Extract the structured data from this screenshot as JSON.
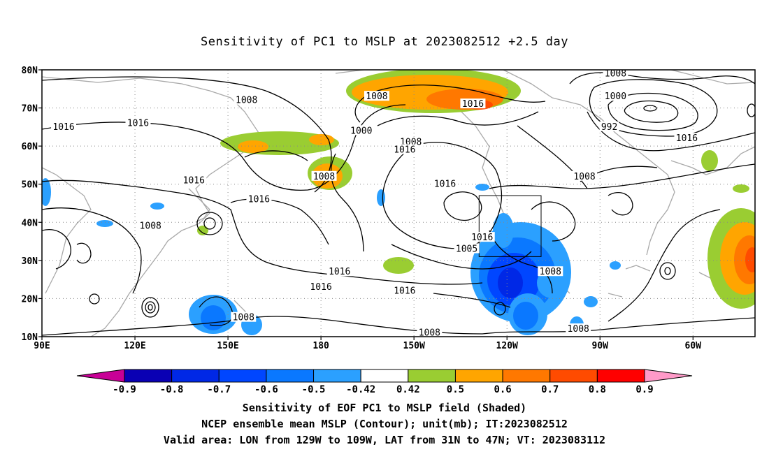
{
  "title": "Sensitivity of PC1 to MSLP at 2023082512 +2.5 day",
  "map": {
    "lat_labels": [
      "80N",
      "70N",
      "60N",
      "50N",
      "40N",
      "30N",
      "20N",
      "10N"
    ],
    "lon_labels": [
      "90E",
      "120E",
      "150E",
      "180",
      "150W",
      "120W",
      "90W",
      "60W"
    ],
    "contour_labels": [
      {
        "text": "1008",
        "lon": 156,
        "lat": 72
      },
      {
        "text": "1016",
        "lon": 97,
        "lat": 65
      },
      {
        "text": "1016",
        "lon": 121,
        "lat": 66
      },
      {
        "text": "1008",
        "lon": 198,
        "lat": 73
      },
      {
        "text": "1000",
        "lon": 193,
        "lat": 64
      },
      {
        "text": "1008",
        "lon": 209,
        "lat": 61
      },
      {
        "text": "1016",
        "lon": 207,
        "lat": 59
      },
      {
        "text": "1016",
        "lon": 229,
        "lat": 71
      },
      {
        "text": "1008",
        "lon": 275,
        "lat": 79
      },
      {
        "text": "1000",
        "lon": 275,
        "lat": 73
      },
      {
        "text": "992",
        "lon": 273,
        "lat": 65
      },
      {
        "text": "1016",
        "lon": 298,
        "lat": 62
      },
      {
        "text": "1008",
        "lon": 181,
        "lat": 52
      },
      {
        "text": "1016",
        "lon": 139,
        "lat": 51
      },
      {
        "text": "1016",
        "lon": 160,
        "lat": 46
      },
      {
        "text": "1008",
        "lon": 125,
        "lat": 39
      },
      {
        "text": "1016",
        "lon": 220,
        "lat": 50
      },
      {
        "text": "1008",
        "lon": 265,
        "lat": 52
      },
      {
        "text": "1016",
        "lon": 232,
        "lat": 36
      },
      {
        "text": "1005",
        "lon": 227,
        "lat": 33
      },
      {
        "text": "1016",
        "lon": 186,
        "lat": 27
      },
      {
        "text": "1016",
        "lon": 180,
        "lat": 23
      },
      {
        "text": "1016",
        "lon": 207,
        "lat": 22
      },
      {
        "text": "1008",
        "lon": 254,
        "lat": 27
      },
      {
        "text": "1008",
        "lon": 155,
        "lat": 15
      },
      {
        "text": "1008",
        "lon": 215,
        "lat": 11
      },
      {
        "text": "1008",
        "lon": 263,
        "lat": 12
      }
    ]
  },
  "colorbar": {
    "labels": [
      "-0.9",
      "-0.8",
      "-0.7",
      "-0.6",
      "-0.5",
      "-0.42",
      "0.42",
      "0.5",
      "0.6",
      "0.7",
      "0.8",
      "0.9"
    ],
    "colors": [
      "#0a00b4",
      "#0028e6",
      "#0046ff",
      "#0a78ff",
      "#2ba0ff",
      "#ffffff",
      "#9acd32",
      "#ffa500",
      "#ff7800",
      "#ff4b00",
      "#ff0000"
    ],
    "low_color": "#c80096",
    "high_color": "#ff9ac8"
  },
  "captions": {
    "line1": "Sensitivity of EOF PC1 to MSLP field (Shaded)",
    "line2": "NCEP ensemble mean MSLP (Contour); unit(mb); IT:2023082512",
    "line3": "Valid area: LON from 129W to 109W, LAT from 31N to 47N; VT: 2023083112"
  }
}
